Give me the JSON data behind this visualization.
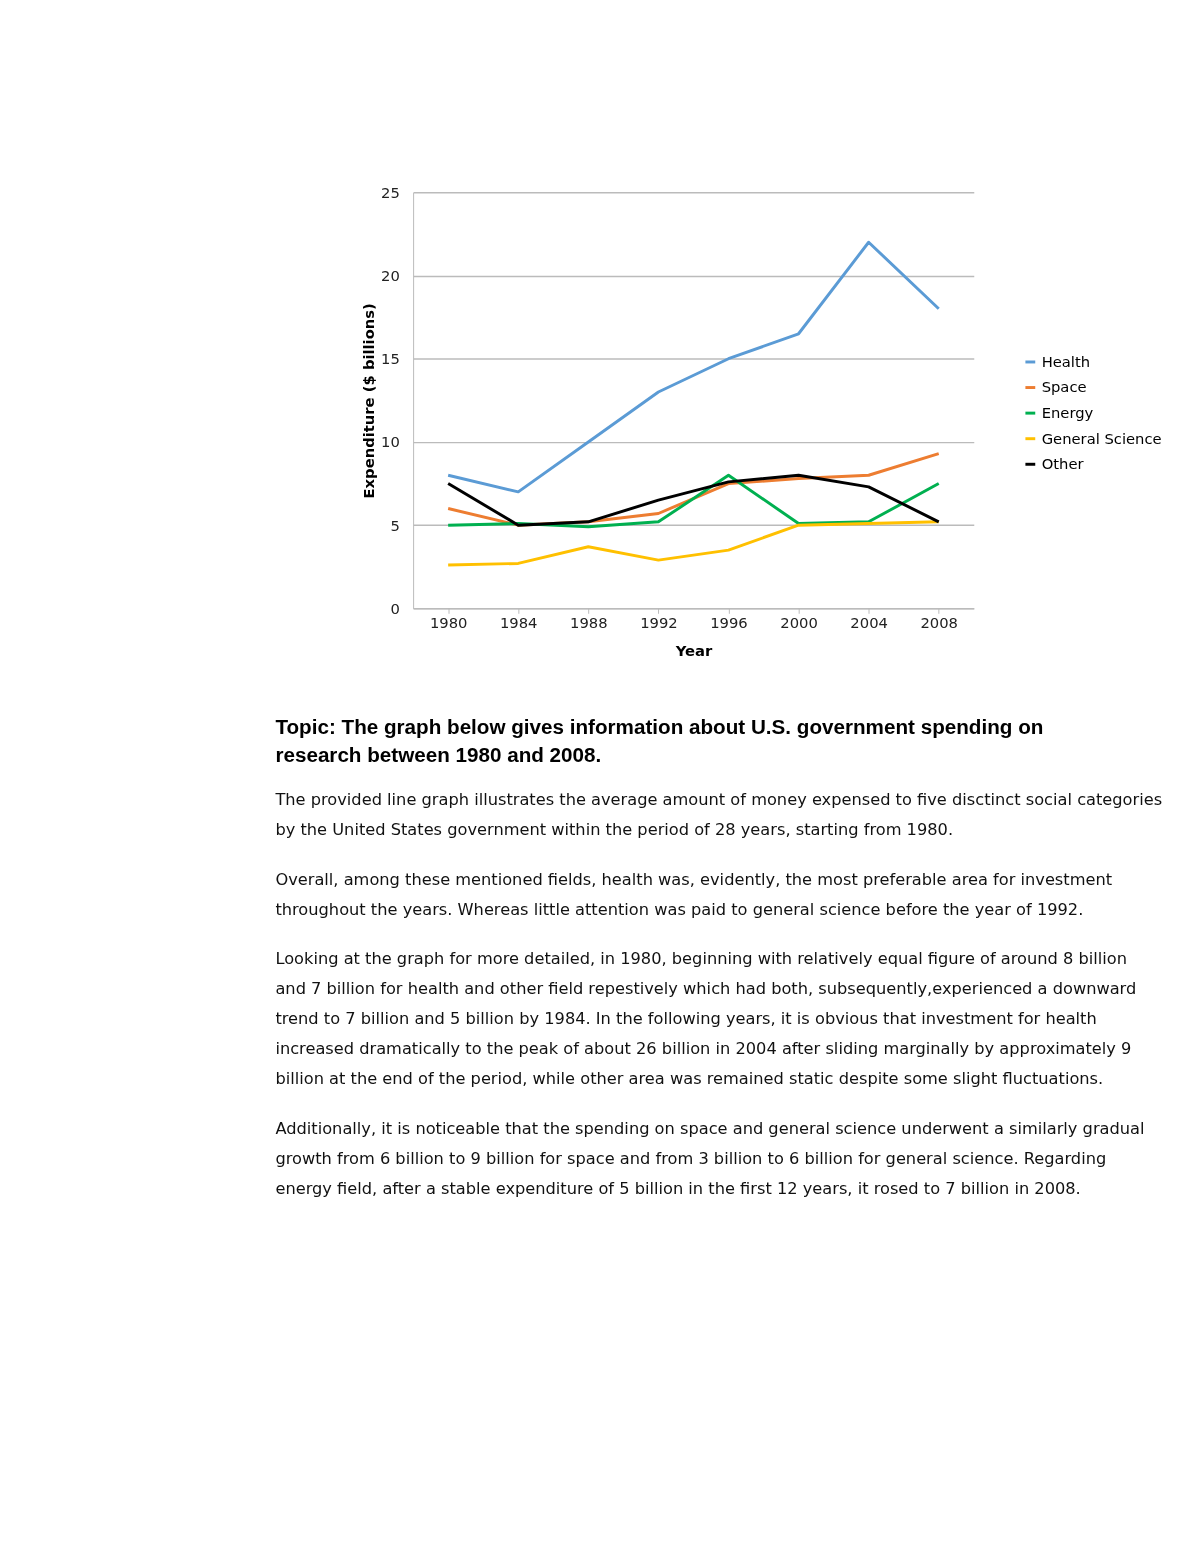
{
  "chart_data": {
    "type": "line",
    "xlabel": "Year",
    "ylabel": "Expenditure  ($ billions)",
    "categories": [
      "1980",
      "1984",
      "1988",
      "1992",
      "1996",
      "2000",
      "2004",
      "2008"
    ],
    "series": [
      {
        "name": "Health",
        "color": "#5b9bd5",
        "values": [
          8,
          7,
          10,
          13,
          15,
          16.5,
          22,
          18
        ]
      },
      {
        "name": "Space",
        "color": "#ed7d31",
        "values": [
          6,
          5,
          5.2,
          5.7,
          7.5,
          7.8,
          8,
          9.3
        ]
      },
      {
        "name": "Energy",
        "color": "#00b050",
        "values": [
          5,
          5.1,
          4.9,
          5.2,
          8,
          5.1,
          5.2,
          7.5
        ]
      },
      {
        "name": "General Science",
        "color": "#ffc000",
        "values": [
          2.6,
          2.7,
          3.7,
          2.9,
          3.5,
          5,
          5.1,
          5.2
        ]
      },
      {
        "name": "Other",
        "color": "#000000",
        "values": [
          7.5,
          5,
          5.2,
          6.5,
          7.6,
          8,
          7.3,
          5.2
        ]
      }
    ],
    "ylim": [
      0,
      25
    ],
    "yticks": [
      0,
      5,
      10,
      15,
      20,
      25
    ],
    "grid": "y",
    "legend": "right",
    "marker": "none",
    "line_style": "solid",
    "annotations": [
      "Topic: The graph below gives information about U.S. government spending on research between 1980 and 2008.",
      "The provided line graph illustrates the average amount of money expensed to five disctinct social categories by the United States government within the period of 28 years, starting from 1980.",
      "Overall, among these mentioned fields, health was, evidently, the most preferable area for investment throughout the years. Whereas little attention was paid to general science before the year of 1992.",
      "Looking at the graph for more detailed, in 1980, beginning with relatively equal figure of around 8 billion and 7 billion for health and other field repestively which had both, subsequently,experienced a downward trend to 7 billion and 5 billion by 1984. In the following years, it is obvious that investment for health increased dramatically to the peak of about 26 billion in 2004 after sliding marginally by approximately 9 billion at the end of the period, while other area was remained static despite some slight fluctuations.",
      "Additionally, it is noticeable that the spending on space and general science underwent a similarly gradual growth from 6 billion to 9 billion for space and from 3 billion to 6 billion for general science. Regarding energy field, after a stable expenditure of 5 billion in the first 12 years, it rosed to 7 billion in 2008."
    ]
  }
}
